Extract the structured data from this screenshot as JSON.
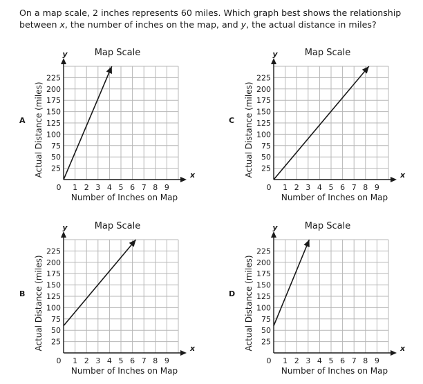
{
  "question": {
    "line1": "On a map scale, 2 inches represents 60 miles. Which graph best shows the relationship",
    "line2_pre": "between ",
    "var_x": "x",
    "line2_mid": ", the number of inches on the map, and ",
    "var_y": "y",
    "line2_post": ", the actual distance in miles?"
  },
  "options": [
    {
      "letter": "A"
    },
    {
      "letter": "C"
    },
    {
      "letter": "B"
    },
    {
      "letter": "D"
    }
  ],
  "chart_data": [
    {
      "type": "line",
      "option": "A",
      "title": "Map Scale",
      "xlabel": "Number of Inches on Map",
      "ylabel": "Actual Distance (miles)",
      "x_axis_var": "x",
      "y_axis_var": "y",
      "xlim": [
        0,
        10
      ],
      "ylim": [
        0,
        250
      ],
      "x_ticks": [
        1,
        2,
        3,
        4,
        5,
        6,
        7,
        8,
        9
      ],
      "y_ticks": [
        25,
        50,
        75,
        100,
        125,
        150,
        175,
        200,
        225
      ],
      "origin_label": "0",
      "grid": true,
      "series": [
        {
          "x": [
            0,
            4.2
          ],
          "y": [
            0,
            250
          ]
        }
      ]
    },
    {
      "type": "line",
      "option": "C",
      "title": "Map Scale",
      "xlabel": "Number of Inches on Map",
      "ylabel": "Actual Distance (miles)",
      "x_axis_var": "x",
      "y_axis_var": "y",
      "xlim": [
        0,
        10
      ],
      "ylim": [
        0,
        250
      ],
      "x_ticks": [
        1,
        2,
        3,
        4,
        5,
        6,
        7,
        8,
        9
      ],
      "y_ticks": [
        25,
        50,
        75,
        100,
        125,
        150,
        175,
        200,
        225
      ],
      "origin_label": "0",
      "grid": true,
      "series": [
        {
          "x": [
            0,
            8.3
          ],
          "y": [
            0,
            250
          ]
        }
      ]
    },
    {
      "type": "line",
      "option": "B",
      "title": "Map Scale",
      "xlabel": "Number of Inches on Map",
      "ylabel": "Actual Distance (miles)",
      "x_axis_var": "x",
      "y_axis_var": "y",
      "xlim": [
        0,
        10
      ],
      "ylim": [
        0,
        250
      ],
      "x_ticks": [
        1,
        2,
        3,
        4,
        5,
        6,
        7,
        8,
        9
      ],
      "y_ticks": [
        25,
        50,
        75,
        100,
        125,
        150,
        175,
        200,
        225
      ],
      "origin_label": "0",
      "grid": true,
      "series": [
        {
          "x": [
            0,
            6.3
          ],
          "y": [
            60,
            250
          ]
        }
      ]
    },
    {
      "type": "line",
      "option": "D",
      "title": "Map Scale",
      "xlabel": "Number of Inches on Map",
      "ylabel": "Actual Distance (miles)",
      "x_axis_var": "x",
      "y_axis_var": "y",
      "xlim": [
        0,
        10
      ],
      "ylim": [
        0,
        250
      ],
      "x_ticks": [
        1,
        2,
        3,
        4,
        5,
        6,
        7,
        8,
        9
      ],
      "y_ticks": [
        25,
        50,
        75,
        100,
        125,
        150,
        175,
        200,
        225
      ],
      "origin_label": "0",
      "grid": true,
      "series": [
        {
          "x": [
            0,
            3.1
          ],
          "y": [
            60,
            250
          ]
        }
      ]
    }
  ]
}
